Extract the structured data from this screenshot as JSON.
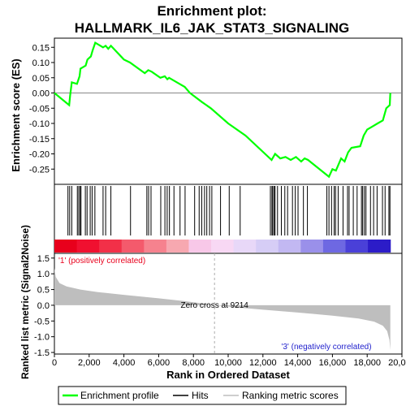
{
  "chart_data": {
    "type": "line",
    "title_line1": "Enrichment plot:",
    "title_line2": "HALLMARK_IL6_JAK_STAT3_SIGNALING",
    "x_axis": {
      "label": "Rank in Ordered Dataset",
      "range": [
        0,
        20000
      ],
      "ticks": [
        0,
        2000,
        4000,
        6000,
        8000,
        10000,
        12000,
        14000,
        16000,
        18000,
        20000
      ],
      "tick_labels": [
        "0",
        "2,000",
        "4,000",
        "6,000",
        "8,000",
        "10,000",
        "12,000",
        "14,000",
        "16,000",
        "18,000",
        "20,000"
      ]
    },
    "es_panel": {
      "ylabel": "Enrichment score (ES)",
      "ylim": [
        -0.3,
        0.18
      ],
      "ticks": [
        0.15,
        0.1,
        0.05,
        0.0,
        -0.05,
        -0.1,
        -0.15,
        -0.2,
        -0.25
      ],
      "tick_labels": [
        "0.15",
        "0.10",
        "0.05",
        "0.00",
        "-0.05",
        "-0.10",
        "-0.15",
        "-0.20",
        "-0.25"
      ],
      "color": "#00ff00",
      "points": [
        [
          0,
          0.0
        ],
        [
          850,
          -0.04
        ],
        [
          900,
          -0.01
        ],
        [
          1000,
          0.035
        ],
        [
          1300,
          0.03
        ],
        [
          1450,
          0.055
        ],
        [
          1500,
          0.08
        ],
        [
          1800,
          0.09
        ],
        [
          1900,
          0.11
        ],
        [
          2100,
          0.12
        ],
        [
          2200,
          0.14
        ],
        [
          2350,
          0.165
        ],
        [
          2800,
          0.15
        ],
        [
          2950,
          0.155
        ],
        [
          3100,
          0.145
        ],
        [
          3250,
          0.155
        ],
        [
          4000,
          0.11
        ],
        [
          4350,
          0.1
        ],
        [
          5200,
          0.065
        ],
        [
          5400,
          0.075
        ],
        [
          5600,
          0.07
        ],
        [
          6100,
          0.05
        ],
        [
          6350,
          0.055
        ],
        [
          6500,
          0.045
        ],
        [
          6600,
          0.05
        ],
        [
          7200,
          0.03
        ],
        [
          7500,
          0.02
        ],
        [
          7800,
          0.0
        ],
        [
          8500,
          -0.03
        ],
        [
          9000,
          -0.05
        ],
        [
          10000,
          -0.1
        ],
        [
          11000,
          -0.14
        ],
        [
          12500,
          -0.22
        ],
        [
          12700,
          -0.2
        ],
        [
          13000,
          -0.215
        ],
        [
          13300,
          -0.21
        ],
        [
          13600,
          -0.22
        ],
        [
          13900,
          -0.21
        ],
        [
          14200,
          -0.225
        ],
        [
          14400,
          -0.215
        ],
        [
          14600,
          -0.22
        ],
        [
          15800,
          -0.275
        ],
        [
          16000,
          -0.25
        ],
        [
          16200,
          -0.255
        ],
        [
          16500,
          -0.215
        ],
        [
          16700,
          -0.225
        ],
        [
          16900,
          -0.195
        ],
        [
          17100,
          -0.18
        ],
        [
          17600,
          -0.175
        ],
        [
          17800,
          -0.14
        ],
        [
          18000,
          -0.12
        ],
        [
          18300,
          -0.11
        ],
        [
          18600,
          -0.1
        ],
        [
          18900,
          -0.09
        ],
        [
          19100,
          -0.05
        ],
        [
          19300,
          -0.04
        ],
        [
          19330,
          0.0
        ]
      ]
    },
    "hits_panel": {
      "hit_positions": [
        780,
        880,
        1000,
        1320,
        1400,
        1480,
        1530,
        1780,
        1880,
        2060,
        2170,
        2330,
        2800,
        2950,
        3250,
        4380,
        5320,
        5420,
        5560,
        6120,
        6360,
        6490,
        6620,
        6880,
        7230,
        7520,
        8070,
        8330,
        8480,
        8640,
        8770,
        8930,
        9060,
        9560,
        10060,
        10690,
        12430,
        12520,
        12560,
        12640,
        12700,
        12840,
        13060,
        13260,
        13420,
        13700,
        13860,
        14020,
        14330,
        14560,
        15680,
        15800,
        15950,
        16100,
        16180,
        16330,
        16610,
        16870,
        16960,
        17200,
        17420,
        17670,
        17740,
        17840,
        17930,
        18190,
        18370,
        18570,
        18880,
        19030,
        19250,
        19310
      ],
      "colorbar": [
        "#e8001c",
        "#f01030",
        "#f23048",
        "#f45a6c",
        "#f6828e",
        "#f7a8b0",
        "#f8c8e8",
        "#f8d8f4",
        "#e8d8f8",
        "#d6cdf6",
        "#c2b8f2",
        "#9a90ea",
        "#6e68e2",
        "#4a40d8",
        "#2c1cc8"
      ]
    },
    "metric_panel": {
      "ylabel": "Ranked list metric (Signal2Noise)",
      "ylim": [
        -1.55,
        1.65
      ],
      "ticks": [
        1.5,
        1.0,
        0.5,
        0.0,
        -0.5,
        -1.0,
        -1.5
      ],
      "tick_labels": [
        "1.5",
        "1.0",
        "0.5",
        "0.0",
        "-0.5",
        "-1.0",
        "-1.5"
      ],
      "fill": "#bebebe",
      "curve": [
        [
          0,
          1.18
        ],
        [
          80,
          0.9
        ],
        [
          300,
          0.7
        ],
        [
          700,
          0.6
        ],
        [
          1500,
          0.5
        ],
        [
          2500,
          0.42
        ],
        [
          4000,
          0.33
        ],
        [
          6000,
          0.22
        ],
        [
          7500,
          0.13
        ],
        [
          8500,
          0.06
        ],
        [
          9214,
          0.0
        ],
        [
          10500,
          -0.07
        ],
        [
          12000,
          -0.14
        ],
        [
          14000,
          -0.23
        ],
        [
          16000,
          -0.33
        ],
        [
          17500,
          -0.42
        ],
        [
          18400,
          -0.52
        ],
        [
          18900,
          -0.65
        ],
        [
          19150,
          -0.82
        ],
        [
          19280,
          -1.1
        ],
        [
          19330,
          -1.42
        ]
      ],
      "zero_cross_label": "Zero cross at 9214",
      "zero_cross": 9214,
      "pos_label": "'1' (positively correlated)",
      "neg_label": "'3' (negatively correlated)"
    },
    "legend": [
      {
        "name": "Enrichment profile",
        "color": "#00ff00"
      },
      {
        "name": "Hits",
        "color": "#000000"
      },
      {
        "name": "Ranking metric scores",
        "color": "#bebebe"
      }
    ]
  }
}
